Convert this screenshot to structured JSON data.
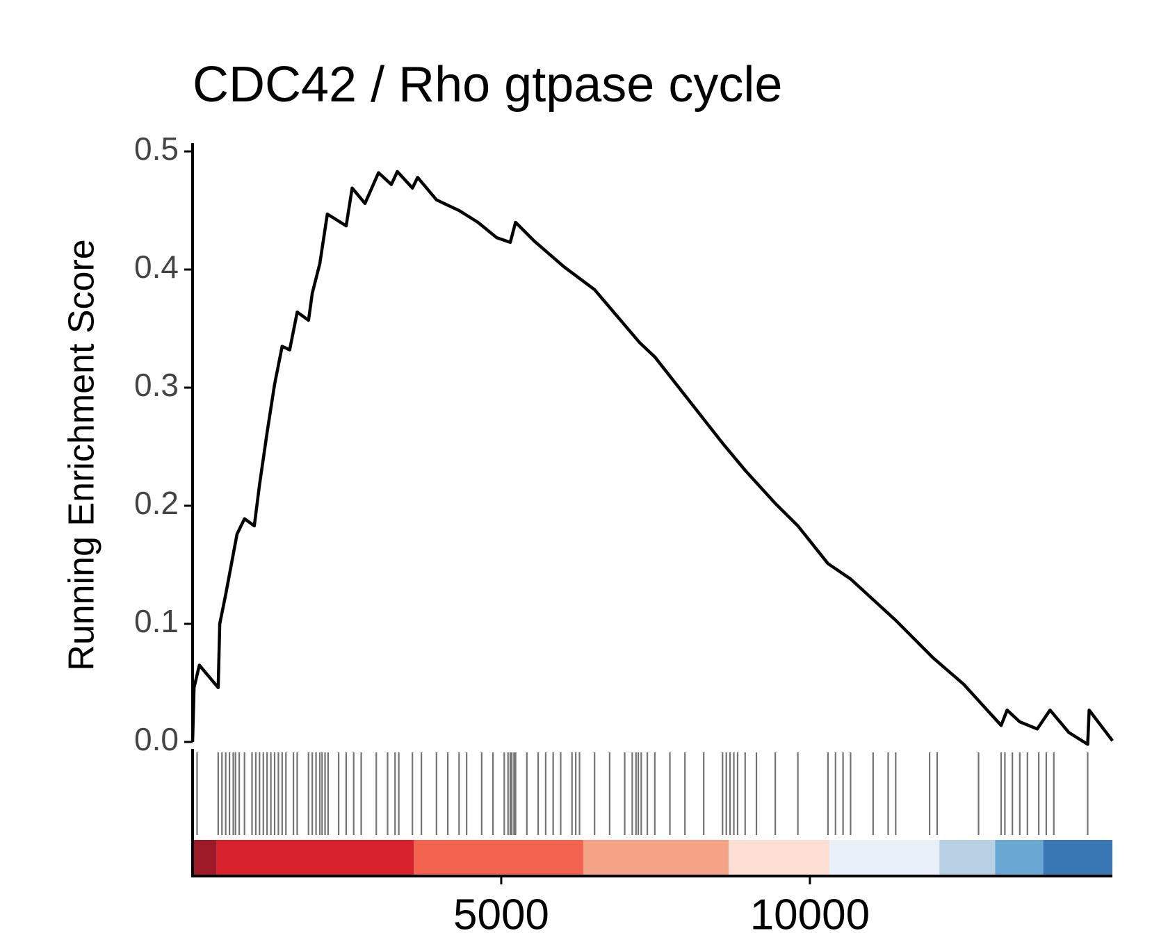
{
  "chart_data": {
    "type": "line",
    "title": "CDC42 / Rho gtpase cycle",
    "ylabel": "Running Enrichment Score",
    "xlim": [
      0,
      14900
    ],
    "xticks": [
      5000,
      10000
    ],
    "ylim": [
      0,
      0.5
    ],
    "yticks": [
      {
        "value": 0,
        "label": "0.0"
      },
      0.1,
      0.2,
      0.3,
      0.4,
      0.5
    ],
    "x": [
      0,
      24,
      110,
      415,
      440,
      537,
      720,
      841,
      1000,
      1085,
      1207,
      1329,
      1451,
      1573,
      1695,
      1878,
      1939,
      2061,
      2183,
      2305,
      2488,
      2585,
      2793,
      3012,
      3220,
      3317,
      3561,
      3646,
      3951,
      4317,
      4622,
      4927,
      5146,
      5232,
      5537,
      6024,
      6512,
      7244,
      7488,
      8585,
      8951,
      9439,
      9805,
      10293,
      10659,
      11390,
      12000,
      12488,
      13098,
      13195,
      13400,
      13683,
      13890,
      14195,
      14500,
      14524,
      14902
    ],
    "series": [
      {
        "color": "#000000",
        "values": [
          0,
          0.046,
          0.065,
          0.046,
          0.1,
          0.125,
          0.176,
          0.189,
          0.183,
          0.218,
          0.262,
          0.303,
          0.335,
          0.332,
          0.364,
          0.357,
          0.38,
          0.405,
          0.447,
          0.443,
          0.437,
          0.469,
          0.456,
          0.482,
          0.472,
          0.483,
          0.469,
          0.478,
          0.459,
          0.45,
          0.44,
          0.427,
          0.423,
          0.44,
          0.424,
          0.402,
          0.383,
          0.338,
          0.326,
          0.253,
          0.23,
          0.202,
          0.183,
          0.151,
          0.138,
          0.103,
          0.071,
          0.049,
          0.014,
          0.027,
          0.017,
          0.011,
          0.027,
          0.008,
          -0.002,
          0.027,
          0.001
        ]
      }
    ],
    "hits": [
      73,
      415,
      476,
      537,
      598,
      659,
      695,
      756,
      841,
      963,
      1024,
      1085,
      1146,
      1207,
      1268,
      1329,
      1390,
      1451,
      1512,
      1634,
      1695,
      1878,
      1939,
      2000,
      2061,
      2098,
      2146,
      2195,
      2366,
      2488,
      2610,
      2732,
      2976,
      3159,
      3280,
      3341,
      3561,
      3707,
      3951,
      4134,
      4317,
      4439,
      4683,
      4866,
      5049,
      5110,
      5146,
      5171,
      5207,
      5232,
      5415,
      5598,
      5720,
      5841,
      5963,
      6146,
      6207,
      6268,
      6512,
      6756,
      7000,
      7122,
      7183,
      7220,
      7268,
      7366,
      7488,
      7732,
      7976,
      8280,
      8585,
      8646,
      8707,
      8768,
      8829,
      8951,
      9134,
      9439,
      9805,
      10293,
      10415,
      10537,
      10659,
      11024,
      11268,
      11390,
      11939,
      12061,
      12732,
      13098,
      13159,
      13280,
      13400,
      13524,
      13707,
      13829,
      13951,
      14500
    ],
    "bands": {
      "edges": [
        0,
        390,
        3585,
        6329,
        8683,
        10317,
        12098,
        13000,
        13780,
        14900
      ],
      "colors": [
        "#9e1a28",
        "#d7222c",
        "#f36450",
        "#f5a387",
        "#fde0d3",
        "#eaf0fa",
        "#b8d0e3",
        "#6aa8d4",
        "#3a78b5"
      ]
    }
  }
}
